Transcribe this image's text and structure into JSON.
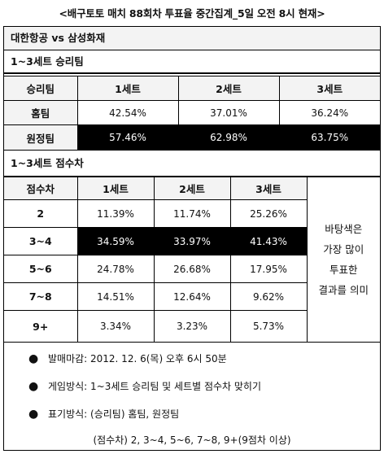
{
  "title": "<배구토토 매치 88회차 투표율 중간집계_5일 오전 8시 현재>",
  "match": "대한항공 vs 삼성화재",
  "section1": {
    "heading": "1~3세트 승리팀",
    "columns": [
      "승리팀",
      "1세트",
      "2세트",
      "3세트"
    ],
    "rows": [
      {
        "label": "홈팀",
        "values": [
          "42.54%",
          "37.01%",
          "36.24%"
        ]
      },
      {
        "label": "원정팀",
        "values": [
          "57.46%",
          "62.98%",
          "63.75%"
        ]
      }
    ]
  },
  "section2": {
    "heading": "1~3세트 점수차",
    "columns": [
      "점수차",
      "1세트",
      "2세트",
      "3세트"
    ],
    "rows": [
      {
        "label": "2",
        "values": [
          "11.39%",
          "11.74%",
          "25.26%"
        ]
      },
      {
        "label": "3~4",
        "values": [
          "34.59%",
          "33.97%",
          "41.43%"
        ]
      },
      {
        "label": "5~6",
        "values": [
          "24.78%",
          "26.68%",
          "17.95%"
        ]
      },
      {
        "label": "7~8",
        "values": [
          "14.51%",
          "12.64%",
          "9.62%"
        ]
      },
      {
        "label": "9+",
        "values": [
          "3.34%",
          "3.23%",
          "5.73%"
        ]
      }
    ],
    "note_lines": [
      "바탕색은",
      "가장 많이",
      "투표한",
      "결과를 의미"
    ]
  },
  "info": {
    "bullets": [
      "발매마감: 2012. 12. 6(목) 오후 6시 50분",
      "게임방식: 1~3세트 승리팀 및 세트별 점수차 맞히기",
      "표기방식: (승리팀) 홈팀, 원정팀"
    ],
    "footnote": "(점수차) 2, 3~4, 5~6, 7~8, 9+(9점차 이상)",
    "bullet_glyph": "●"
  },
  "highlight": {
    "winner_row": "원정팀",
    "margin_row": "3~4",
    "color": "#000000"
  }
}
